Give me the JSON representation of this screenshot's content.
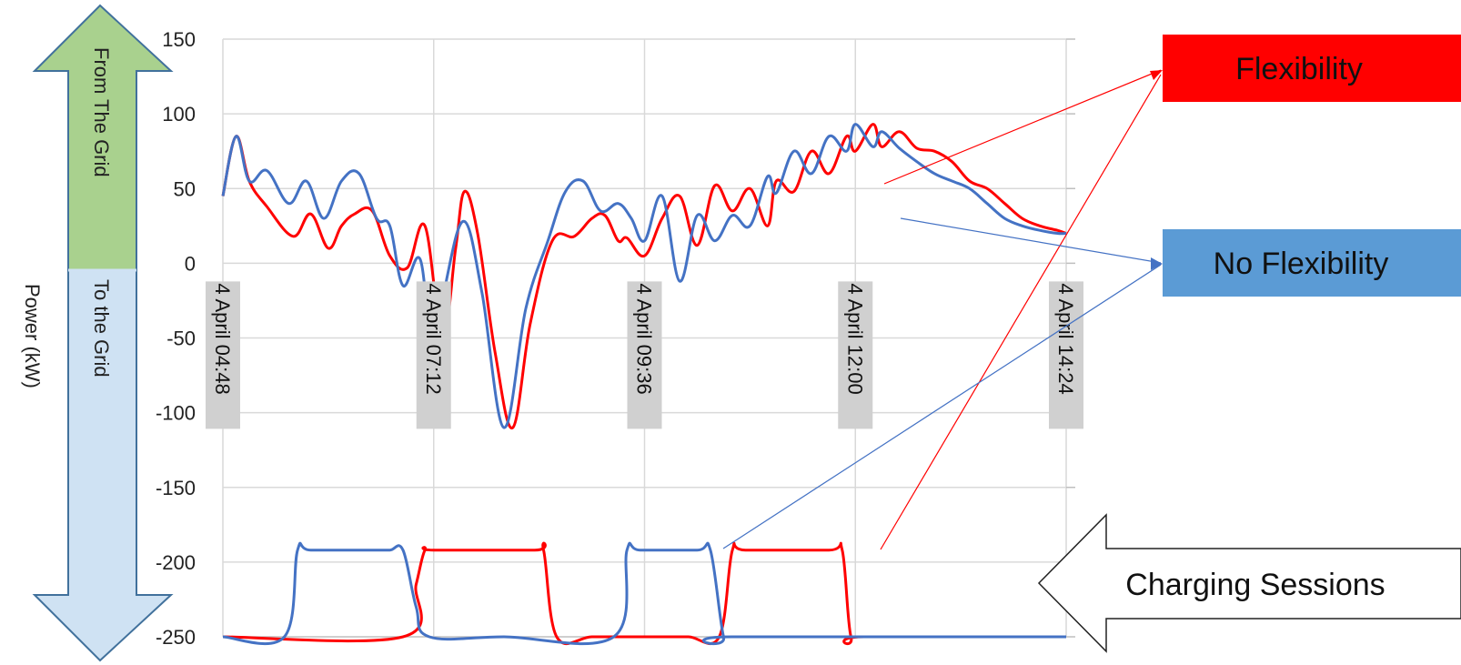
{
  "chart_data": {
    "type": "line",
    "title": "",
    "xlabel": "",
    "ylabel": "Power (kW)",
    "ylim": [
      -250,
      150
    ],
    "yticks": [
      150,
      100,
      50,
      0,
      -50,
      -100,
      -150,
      -200,
      -250
    ],
    "x_tick_labels": [
      "4 April 04:48",
      "4 April 07:12",
      "4 April 09:36",
      "4 April 12:00",
      "4 April 14:24"
    ],
    "x_range_hours": [
      4.8,
      14.4
    ],
    "grid": true,
    "colors": {
      "flexibility": "#ff0000",
      "no_flexibility": "#4472c4"
    },
    "series": [
      {
        "color": "#ff0000",
        "x": [
          4.8,
          4.95,
          5.1,
          5.3,
          5.6,
          5.8,
          6.0,
          6.15,
          6.3,
          6.5,
          6.7,
          6.9,
          7.1,
          7.3,
          7.45,
          7.55,
          7.7,
          7.9,
          8.1,
          8.3,
          8.55,
          8.8,
          9.0,
          9.15,
          9.3,
          9.4,
          9.6,
          9.8,
          10.0,
          10.2,
          10.4,
          10.6,
          10.8,
          11.0,
          11.1,
          11.3,
          11.5,
          11.7,
          11.9,
          12.0,
          12.2,
          12.3,
          12.5,
          12.7,
          12.9,
          13.1,
          13.3,
          13.5,
          13.7,
          13.9,
          14.1,
          14.3,
          14.4
        ],
        "y": [
          45,
          85,
          55,
          38,
          18,
          33,
          10,
          25,
          33,
          35,
          5,
          -3,
          25,
          -50,
          10,
          48,
          20,
          -60,
          -110,
          -40,
          15,
          18,
          30,
          32,
          15,
          17,
          5,
          30,
          45,
          12,
          52,
          35,
          50,
          25,
          55,
          48,
          75,
          60,
          85,
          75,
          93,
          78,
          88,
          77,
          75,
          68,
          55,
          50,
          40,
          30,
          25,
          22,
          20
        ]
      },
      {
        "color": "#4472c4",
        "x": [
          4.8,
          4.95,
          5.1,
          5.3,
          5.55,
          5.75,
          5.95,
          6.15,
          6.35,
          6.55,
          6.7,
          6.85,
          7.05,
          7.2,
          7.35,
          7.55,
          7.75,
          8.0,
          8.25,
          8.5,
          8.7,
          8.9,
          9.1,
          9.3,
          9.45,
          9.6,
          9.8,
          10.0,
          10.2,
          10.4,
          10.6,
          10.8,
          11.0,
          11.1,
          11.3,
          11.5,
          11.7,
          11.9,
          12.0,
          12.2,
          12.3,
          12.5,
          12.7,
          12.9,
          13.1,
          13.3,
          13.5,
          13.7,
          13.9,
          14.1,
          14.3,
          14.4
        ],
        "y": [
          45,
          85,
          55,
          62,
          40,
          55,
          30,
          55,
          60,
          30,
          25,
          -15,
          2,
          -70,
          -10,
          28,
          -20,
          -110,
          -30,
          15,
          48,
          55,
          35,
          40,
          30,
          15,
          45,
          -12,
          32,
          15,
          32,
          25,
          58,
          47,
          75,
          60,
          85,
          75,
          93,
          78,
          88,
          77,
          68,
          60,
          55,
          50,
          40,
          30,
          25,
          22,
          20,
          20
        ]
      },
      {
        "color": "#ff0000",
        "x": [
          4.8,
          6.85,
          7.0,
          7.1,
          7.2,
          8.35,
          8.45,
          8.6,
          9.0,
          9.45,
          9.6,
          9.75,
          10.1,
          10.45,
          10.6,
          10.75,
          11.7,
          11.85,
          11.95,
          12.1,
          14.4
        ],
        "y": [
          -250,
          -250,
          -215,
          -192,
          -192,
          -192,
          -192,
          -250,
          -250,
          -250,
          -250,
          -250,
          -250,
          -250,
          -192,
          -192,
          -192,
          -192,
          -250,
          -250,
          -250
        ]
      },
      {
        "color": "#4472c4",
        "x": [
          4.8,
          5.5,
          5.65,
          5.8,
          6.5,
          6.7,
          6.85,
          7.0,
          7.15,
          8.0,
          9.25,
          9.4,
          9.55,
          10.2,
          10.35,
          10.5,
          10.6,
          14.4
        ],
        "y": [
          -250,
          -250,
          -192,
          -192,
          -192,
          -192,
          -192,
          -230,
          -250,
          -250,
          -250,
          -192,
          -192,
          -192,
          -192,
          -250,
          -250,
          -250
        ]
      }
    ]
  },
  "annotations": {
    "from_grid": "From The Grid",
    "to_grid": "To the Grid",
    "flexibility": "Flexibility",
    "no_flexibility": "No Flexibility",
    "charging_sessions": "Charging Sessions"
  }
}
